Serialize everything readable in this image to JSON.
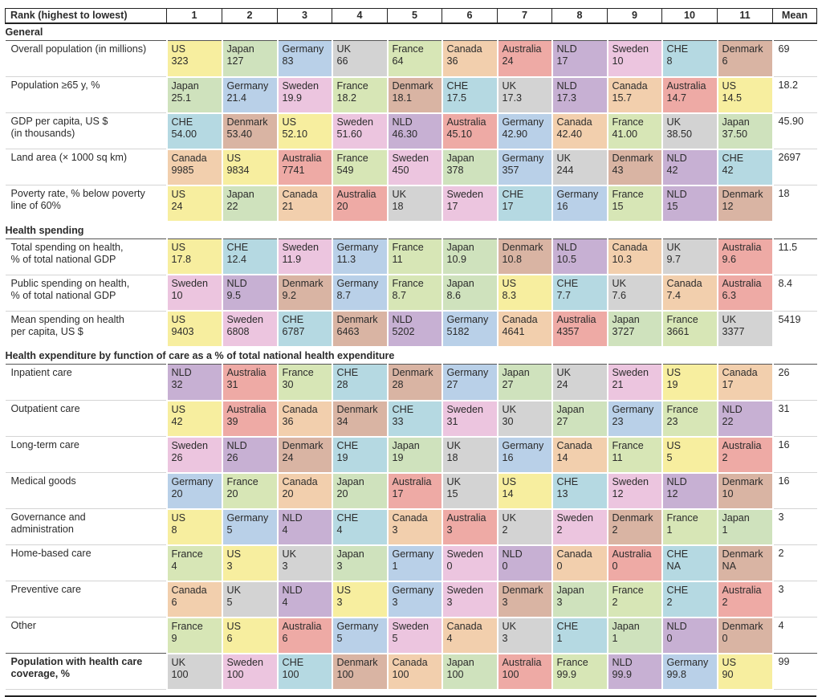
{
  "palette": {
    "US": "#f7ee9f",
    "Japan": "#cfe2bd",
    "Germany": "#b9d0e8",
    "UK": "#d3d3d3",
    "France": "#d7e6b6",
    "Canada": "#f2cfad",
    "Australia": "#eeaaa5",
    "NLD": "#c7b0d3",
    "Sweden": "#ecc5df",
    "CHE": "#b5d9e2",
    "Denmark": "#d9b4a3"
  },
  "header": {
    "rank_label": "Rank (highest to lowest)",
    "ranks": [
      "1",
      "2",
      "3",
      "4",
      "5",
      "6",
      "7",
      "8",
      "9",
      "10",
      "11"
    ],
    "mean_label": "Mean"
  },
  "sections": [
    {
      "title": "General",
      "rows": [
        {
          "label": "Overall population (in millions)",
          "mean": "69",
          "cells": [
            [
              "US",
              "323"
            ],
            [
              "Japan",
              "127"
            ],
            [
              "Germany",
              "83"
            ],
            [
              "UK",
              "66"
            ],
            [
              "France",
              "64"
            ],
            [
              "Canada",
              "36"
            ],
            [
              "Australia",
              "24"
            ],
            [
              "NLD",
              "17"
            ],
            [
              "Sweden",
              "10"
            ],
            [
              "CHE",
              "8"
            ],
            [
              "Denmark",
              "6"
            ]
          ]
        },
        {
          "label": "Population ≥65 y, %",
          "mean": "18.2",
          "cells": [
            [
              "Japan",
              "25.1"
            ],
            [
              "Germany",
              "21.4"
            ],
            [
              "Sweden",
              "19.9"
            ],
            [
              "France",
              "18.2"
            ],
            [
              "Denmark",
              "18.1"
            ],
            [
              "CHE",
              "17.5"
            ],
            [
              "UK",
              "17.3"
            ],
            [
              "NLD",
              "17.3"
            ],
            [
              "Canada",
              "15.7"
            ],
            [
              "Australia",
              "14.7"
            ],
            [
              "US",
              "14.5"
            ]
          ]
        },
        {
          "label": "GDP per capita, US $\n(in thousands)",
          "mean": "45.90",
          "cells": [
            [
              "CHE",
              "54.00"
            ],
            [
              "Denmark",
              "53.40"
            ],
            [
              "US",
              "52.10"
            ],
            [
              "Sweden",
              "51.60"
            ],
            [
              "NLD",
              "46.30"
            ],
            [
              "Australia",
              "45.10"
            ],
            [
              "Germany",
              "42.90"
            ],
            [
              "Canada",
              "42.40"
            ],
            [
              "France",
              "41.00"
            ],
            [
              "UK",
              "38.50"
            ],
            [
              "Japan",
              "37.50"
            ]
          ]
        },
        {
          "label": "Land area (× 1000 sq km)",
          "mean": "2697",
          "cells": [
            [
              "Canada",
              "9985"
            ],
            [
              "US",
              "9834"
            ],
            [
              "Australia",
              "7741"
            ],
            [
              "France",
              "549"
            ],
            [
              "Sweden",
              "450"
            ],
            [
              "Japan",
              "378"
            ],
            [
              "Germany",
              "357"
            ],
            [
              "UK",
              "244"
            ],
            [
              "Denmark",
              "43"
            ],
            [
              "NLD",
              "42"
            ],
            [
              "CHE",
              "42"
            ]
          ]
        },
        {
          "label": "Poverty rate, % below poverty\nline of 60%",
          "mean": "18",
          "cells": [
            [
              "US",
              "24"
            ],
            [
              "Japan",
              "22"
            ],
            [
              "Canada",
              "21"
            ],
            [
              "Australia",
              "20"
            ],
            [
              "UK",
              "18"
            ],
            [
              "Sweden",
              "17"
            ],
            [
              "CHE",
              "17"
            ],
            [
              "Germany",
              "16"
            ],
            [
              "France",
              "15"
            ],
            [
              "NLD",
              "15"
            ],
            [
              "Denmark",
              "12"
            ]
          ]
        }
      ]
    },
    {
      "title": "Health spending",
      "rows": [
        {
          "label": "Total spending on health,\n% of total national GDP",
          "mean": "11.5",
          "cells": [
            [
              "US",
              "17.8"
            ],
            [
              "CHE",
              "12.4"
            ],
            [
              "Sweden",
              "11.9"
            ],
            [
              "Germany",
              "11.3"
            ],
            [
              "France",
              "11"
            ],
            [
              "Japan",
              "10.9"
            ],
            [
              "Denmark",
              "10.8"
            ],
            [
              "NLD",
              "10.5"
            ],
            [
              "Canada",
              "10.3"
            ],
            [
              "UK",
              "9.7"
            ],
            [
              "Australia",
              "9.6"
            ]
          ]
        },
        {
          "label": "Public spending on health,\n% of total national GDP",
          "mean": "8.4",
          "cells": [
            [
              "Sweden",
              "10"
            ],
            [
              "NLD",
              "9.5"
            ],
            [
              "Denmark",
              "9.2"
            ],
            [
              "Germany",
              "8.7"
            ],
            [
              "France",
              "8.7"
            ],
            [
              "Japan",
              "8.6"
            ],
            [
              "US",
              "8.3"
            ],
            [
              "CHE",
              "7.7"
            ],
            [
              "UK",
              "7.6"
            ],
            [
              "Canada",
              "7.4"
            ],
            [
              "Australia",
              "6.3"
            ]
          ]
        },
        {
          "label": "Mean spending on health\nper capita, US $",
          "mean": "5419",
          "cells": [
            [
              "US",
              "9403"
            ],
            [
              "Sweden",
              "6808"
            ],
            [
              "CHE",
              "6787"
            ],
            [
              "Denmark",
              "6463"
            ],
            [
              "NLD",
              "5202"
            ],
            [
              "Germany",
              "5182"
            ],
            [
              "Canada",
              "4641"
            ],
            [
              "Australia",
              "4357"
            ],
            [
              "Japan",
              "3727"
            ],
            [
              "France",
              "3661"
            ],
            [
              "UK",
              "3377"
            ]
          ]
        }
      ]
    },
    {
      "title": "Health expenditure by function of care as a % of total national health expenditure",
      "rows": [
        {
          "label": "Inpatient care",
          "mean": "26",
          "cells": [
            [
              "NLD",
              "32"
            ],
            [
              "Australia",
              "31"
            ],
            [
              "France",
              "30"
            ],
            [
              "CHE",
              "28"
            ],
            [
              "Denmark",
              "28"
            ],
            [
              "Germany",
              "27"
            ],
            [
              "Japan",
              "27"
            ],
            [
              "UK",
              "24"
            ],
            [
              "Sweden",
              "21"
            ],
            [
              "US",
              "19"
            ],
            [
              "Canada",
              "17"
            ]
          ]
        },
        {
          "label": "Outpatient care",
          "mean": "31",
          "cells": [
            [
              "US",
              "42"
            ],
            [
              "Australia",
              "39"
            ],
            [
              "Canada",
              "36"
            ],
            [
              "Denmark",
              "34"
            ],
            [
              "CHE",
              "33"
            ],
            [
              "Sweden",
              "31"
            ],
            [
              "UK",
              "30"
            ],
            [
              "Japan",
              "27"
            ],
            [
              "Germany",
              "23"
            ],
            [
              "France",
              "23"
            ],
            [
              "NLD",
              "22"
            ]
          ]
        },
        {
          "label": "Long-term care",
          "mean": "16",
          "cells": [
            [
              "Sweden",
              "26"
            ],
            [
              "NLD",
              "26"
            ],
            [
              "Denmark",
              "24"
            ],
            [
              "CHE",
              "19"
            ],
            [
              "Japan",
              "19"
            ],
            [
              "UK",
              "18"
            ],
            [
              "Germany",
              "16"
            ],
            [
              "Canada",
              "14"
            ],
            [
              "France",
              "11"
            ],
            [
              "US",
              "5"
            ],
            [
              "Australia",
              "2"
            ]
          ]
        },
        {
          "label": "Medical goods",
          "mean": "16",
          "cells": [
            [
              "Germany",
              "20"
            ],
            [
              "France",
              "20"
            ],
            [
              "Canada",
              "20"
            ],
            [
              "Japan",
              "20"
            ],
            [
              "Australia",
              "17"
            ],
            [
              "UK",
              "15"
            ],
            [
              "US",
              "14"
            ],
            [
              "CHE",
              "13"
            ],
            [
              "Sweden",
              "12"
            ],
            [
              "NLD",
              "12"
            ],
            [
              "Denmark",
              "10"
            ]
          ]
        },
        {
          "label": "Governance and\nadministration",
          "mean": "3",
          "cells": [
            [
              "US",
              "8"
            ],
            [
              "Germany",
              "5"
            ],
            [
              "NLD",
              "4"
            ],
            [
              "CHE",
              "4"
            ],
            [
              "Canada",
              "3"
            ],
            [
              "Australia",
              "3"
            ],
            [
              "UK",
              "2"
            ],
            [
              "Sweden",
              "2"
            ],
            [
              "Denmark",
              "2"
            ],
            [
              "France",
              "1"
            ],
            [
              "Japan",
              "1"
            ]
          ]
        },
        {
          "label": "Home-based care",
          "mean": "2",
          "cells": [
            [
              "France",
              "4"
            ],
            [
              "US",
              "3"
            ],
            [
              "UK",
              "3"
            ],
            [
              "Japan",
              "3"
            ],
            [
              "Germany",
              "1"
            ],
            [
              "Sweden",
              "0"
            ],
            [
              "NLD",
              "0"
            ],
            [
              "Canada",
              "0"
            ],
            [
              "Australia",
              "0"
            ],
            [
              "CHE",
              "NA"
            ],
            [
              "Denmark",
              "NA"
            ]
          ]
        },
        {
          "label": "Preventive care",
          "mean": "3",
          "cells": [
            [
              "Canada",
              "6"
            ],
            [
              "UK",
              "5"
            ],
            [
              "NLD",
              "4"
            ],
            [
              "US",
              "3"
            ],
            [
              "Germany",
              "3"
            ],
            [
              "Sweden",
              "3"
            ],
            [
              "Denmark",
              "3"
            ],
            [
              "Japan",
              "3"
            ],
            [
              "France",
              "2"
            ],
            [
              "CHE",
              "2"
            ],
            [
              "Australia",
              "2"
            ]
          ]
        },
        {
          "label": "Other",
          "mean": "4",
          "cells": [
            [
              "France",
              "9"
            ],
            [
              "US",
              "6"
            ],
            [
              "Australia",
              "6"
            ],
            [
              "Germany",
              "5"
            ],
            [
              "Sweden",
              "5"
            ],
            [
              "Canada",
              "4"
            ],
            [
              "UK",
              "3"
            ],
            [
              "CHE",
              "1"
            ],
            [
              "Japan",
              "1"
            ],
            [
              "NLD",
              "0"
            ],
            [
              "Denmark",
              "0"
            ]
          ]
        }
      ]
    }
  ],
  "coverage": {
    "label": "Population with health care\ncoverage, %",
    "mean": "99",
    "cells": [
      [
        "UK",
        "100"
      ],
      [
        "Sweden",
        "100"
      ],
      [
        "CHE",
        "100"
      ],
      [
        "Denmark",
        "100"
      ],
      [
        "Canada",
        "100"
      ],
      [
        "Japan",
        "100"
      ],
      [
        "Australia",
        "100"
      ],
      [
        "France",
        "99.9"
      ],
      [
        "NLD",
        "99.9"
      ],
      [
        "Germany",
        "99.8"
      ],
      [
        "US",
        "90"
      ]
    ]
  }
}
